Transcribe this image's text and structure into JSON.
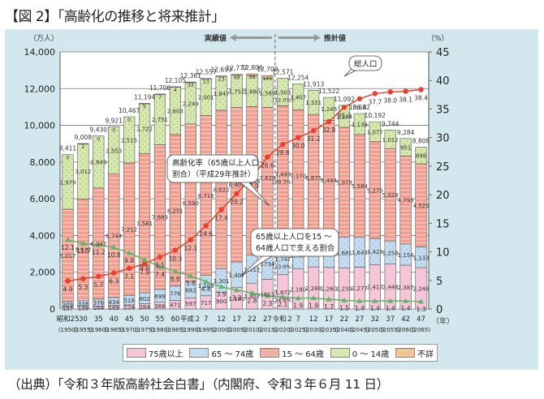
{
  "figure_title": "【図 2】「高齢化の推移と将来推計」",
  "source": "（出典）「令和３年版高齢社会白書」（内閣府、令和３年６月 11 日）",
  "colors": {
    "age75plus": "#f7c5d8",
    "age65_74": "#c3dcf0",
    "age15_64": "#f49d8f",
    "age0_14": "#d6e7b0",
    "unknown": "#f7b780",
    "aging_line": "#e8412f",
    "support_line": "#5fb46a",
    "panel_bg": "#d3e8ee"
  },
  "chart_data": {
    "type": "bar",
    "title": "高齢化の推移と将来推計",
    "ylabel_left": "（万人）",
    "ylabel_right": "（%）",
    "xlabel": "（年）",
    "ylim_left": [
      0,
      14000
    ],
    "ylim_right": [
      0,
      45
    ],
    "yticks_left": [
      "0",
      "2,000",
      "4,000",
      "6,000",
      "8,000",
      "10,000",
      "12,000",
      "14,000"
    ],
    "yticks_right": [
      "0",
      "5",
      "10",
      "15",
      "20",
      "25",
      "30",
      "35",
      "40",
      "45"
    ],
    "grid": true,
    "period_labels": {
      "actual": "実績値",
      "projection": "推計値"
    },
    "callouts": {
      "total": "総人口",
      "aging_rate": [
        "高齢化率（65歳以上人口",
        "割合）（平成29年推計）"
      ],
      "support_ratio": [
        "65歳以上人口を15 ～",
        "64歳人口で支える割合"
      ]
    },
    "categories_era": [
      "昭和25",
      "30",
      "35",
      "40",
      "45",
      "50",
      "55",
      "60",
      "平成２",
      "7",
      "12",
      "17",
      "22",
      "27",
      "令和２",
      "7",
      "12",
      "17",
      "22",
      "27",
      "32",
      "37",
      "42",
      "47"
    ],
    "categories_year": [
      "(1950)",
      "(1955)",
      "(1960)",
      "(1965)",
      "(1970)",
      "(1975)",
      "(1980)",
      "(1985)",
      "(1990)",
      "(1995)",
      "(2000)",
      "(2005)",
      "(2010)",
      "(2015)",
      "(2020)",
      "(2025)",
      "(2030)",
      "(2035)",
      "(2040)",
      "(2045)",
      "(2050)",
      "(2055)",
      "(2060)",
      "(2065)"
    ],
    "legend_position": "bottom",
    "series": [
      {
        "key": "age75plus",
        "name": "75歳以上",
        "values": [
          107,
          139,
          164,
          189,
          224,
          284,
          366,
          471,
          597,
          717,
          900,
          1160,
          1407,
          1613,
          1872,
          2180,
          2288,
          2260,
          2239,
          2277,
          2417,
          2446,
          2387,
          2248
        ]
      },
      {
        "key": "age65_74",
        "name": "65 ～ 74歳",
        "values": [
          309,
          338,
          376,
          434,
          516,
          602,
          699,
          776,
          892,
          1109,
          1301,
          1407,
          1517,
          1734,
          1747,
          1497,
          1428,
          1522,
          1681,
          1643,
          1424,
          1258,
          1154,
          1133
        ]
      },
      {
        "key": "age15_64",
        "name": "15 ～ 64歳",
        "values": [
          5017,
          5517,
          6047,
          6744,
          7212,
          7581,
          7883,
          8251,
          8590,
          8716,
          8622,
          8409,
          8103,
          7629,
          7449,
          7170,
          6875,
          6494,
          5978,
          5584,
          5275,
          5028,
          4793,
          4529
        ]
      },
      {
        "key": "age0_14",
        "name": "0 ～ 14歳",
        "values": [
          2979,
          3012,
          2843,
          2553,
          2515,
          2722,
          2751,
          2603,
          2249,
          2001,
          1847,
          1752,
          1680,
          1589,
          1503,
          1407,
          1321,
          1246,
          1194,
          1138,
          1077,
          1012,
          951,
          898
        ]
      },
      {
        "key": "unknown",
        "name": "不詳",
        "values": [
          0,
          2,
          0,
          0,
          0,
          5,
          7,
          4,
          33,
          13,
          23,
          48,
          98,
          145,
          0,
          0,
          0,
          0,
          0,
          0,
          0,
          0,
          0,
          0
        ]
      }
    ],
    "totals": [
      "8,411",
      "9,008",
      "9,430",
      "9,921",
      "10,467",
      "11,194",
      "11,706",
      "12,105",
      "12,361",
      "12,557",
      "12,693",
      "12,777",
      "12,806",
      "12,709",
      "12,571",
      "12,254",
      "11,913",
      "11,522",
      "11,092",
      "10,642",
      "10,192",
      "9,744",
      "9,284",
      "8,808"
    ],
    "value_labels": {
      "age75plus": [
        "107",
        "139",
        "164",
        "189",
        "224",
        "284",
        "366",
        "471",
        "597",
        "717",
        "900",
        "1,160",
        "1,407",
        "1613",
        "1,872",
        "2,180",
        "2,288",
        "2,260",
        "2,239",
        "2,277",
        "2,417",
        "2,446",
        "2,387",
        "2,248"
      ],
      "age65_74": [
        "309",
        "338",
        "376",
        "434",
        "516",
        "602",
        "699",
        "776",
        "892",
        "1,109",
        "1,301",
        "1,407",
        "1,517",
        "1734",
        "1,747",
        "1,497",
        "1,428",
        "1,522",
        "1,681",
        "1,643",
        "1,424",
        "1,258",
        "1,154",
        "1,133"
      ],
      "age15_64": [
        "5,017",
        "5,517",
        "6,047",
        "6,744",
        "7,212",
        "7,581",
        "7,883",
        "8,251",
        "8,590",
        "8,716",
        "8,622",
        "8,409",
        "8,103",
        "7,629",
        "7,449",
        "7,170",
        "6,875",
        "6,494",
        "5,978",
        "5,584",
        "5,275",
        "5,028",
        "4,793",
        "4,529"
      ],
      "age0_14": [
        "2,979",
        "3,012",
        "2,843",
        "2,553",
        "2,515",
        "2,722",
        "2,751",
        "2,603",
        "2,249",
        "2,001",
        "1,847",
        "1,752",
        "1,680",
        "1,589",
        "1,503",
        "1,407",
        "1,321",
        "1,246",
        "1,194",
        "1,138",
        "1,077",
        "1,012",
        "951",
        "898"
      ],
      "unknown": [
        "0",
        "2",
        "0",
        "0",
        "0",
        "5",
        "7",
        "4",
        "33",
        "13",
        "23",
        "48",
        "98",
        "145",
        "",
        "",
        "",
        "",
        "",
        "",
        "",
        "",
        "",
        ""
      ]
    },
    "annotations_2020": {
      "age0_14": "(12.0%)",
      "age15_64": "(59.3%)",
      "age65_74": "(13.9%)",
      "age75plus": "(14.9%)"
    },
    "lines": [
      {
        "key": "aging_rate",
        "name": "高齢化率（65歳以上人口割合）",
        "axis": "right",
        "values": [
          4.9,
          5.3,
          5.7,
          6.3,
          7.1,
          7.9,
          9.1,
          10.3,
          12.1,
          14.6,
          17.4,
          20.2,
          23.0,
          26.6,
          28.8,
          30.0,
          31.2,
          32.8,
          35.3,
          36.8,
          37.7,
          38.0,
          38.1,
          38.4
        ]
      },
      {
        "key": "support_ratio",
        "name": "65歳以上人口を15～64歳人口で支える割合",
        "axis": "right",
        "values": [
          12.1,
          11.5,
          11.2,
          10.8,
          9.8,
          8.6,
          7.4,
          6.6,
          5.8,
          4.8,
          3.9,
          3.3,
          2.8,
          2.3,
          2.1,
          1.9,
          1.9,
          1.7,
          1.5,
          1.4,
          1.4,
          1.4,
          1.4,
          1.3
        ]
      }
    ]
  }
}
